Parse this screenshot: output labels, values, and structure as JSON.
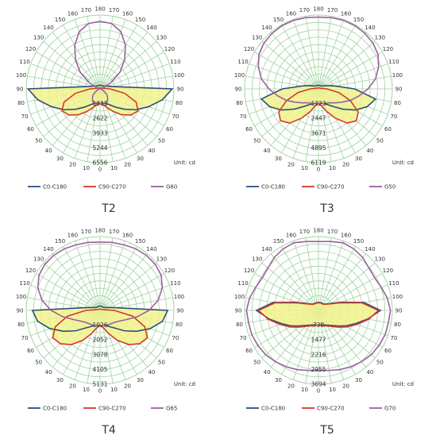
{
  "chart_data": [
    {
      "type": "polar",
      "title": "T2",
      "unit_label": "Unit: cd",
      "angle_tick_labels": [
        "180",
        "170",
        "160",
        "150",
        "140",
        "130",
        "120",
        "110",
        "100",
        "90",
        "80",
        "70",
        "60",
        "50",
        "40",
        "30",
        "20",
        "10",
        "0"
      ],
      "radial_tick_labels": [
        "1311",
        "2622",
        "3933",
        "5244",
        "6556"
      ],
      "rmax": 6556,
      "angles_deg": [
        0,
        10,
        20,
        30,
        40,
        50,
        60,
        70,
        80,
        90,
        100,
        110,
        120,
        130,
        140,
        150,
        160,
        170,
        180
      ],
      "series": [
        {
          "name": "C0-C180",
          "color": "#2b4f7a",
          "values": [
            1300,
            1250,
            1350,
            1600,
            2100,
            2800,
            3700,
            4600,
            5600,
            6400,
            1200,
            700,
            500,
            400,
            350,
            330,
            320,
            320,
            320
          ]
        },
        {
          "name": "C90-C270",
          "color": "#d23a2a",
          "values": [
            1300,
            1400,
            1750,
            2300,
            3000,
            3600,
            3900,
            3400,
            2200,
            900,
            300,
            200,
            150,
            120,
            100,
            100,
            100,
            100,
            100
          ]
        },
        {
          "name": "G60",
          "color": "#9b5f9f",
          "values": [
            0,
            0,
            0,
            0,
            0,
            0,
            0,
            0,
            0,
            0,
            0,
            0,
            0,
            0,
            0,
            0,
            0,
            0,
            0
          ],
          "half_angles_deg": [
            0,
            10,
            20,
            30,
            40,
            50,
            60,
            70,
            80,
            90,
            100,
            110,
            120,
            130,
            140,
            150,
            160,
            170,
            180
          ],
          "half_values": [
            1300,
            1300,
            1400,
            1300,
            1050,
            800,
            400,
            200,
            100,
            60,
            40,
            300,
            1100,
            2300,
            3400,
            4500,
            5400,
            5900,
            6000
          ]
        }
      ]
    },
    {
      "type": "polar",
      "title": "T3",
      "unit_label": "Unit: cd",
      "angle_tick_labels": [
        "180",
        "170",
        "160",
        "150",
        "140",
        "130",
        "120",
        "110",
        "100",
        "90",
        "80",
        "70",
        "60",
        "50",
        "40",
        "30",
        "20",
        "10",
        "0"
      ],
      "radial_tick_labels": [
        "1223",
        "2447",
        "3671",
        "4895",
        "6119"
      ],
      "rmax": 6119,
      "angles_deg": [
        0,
        10,
        20,
        30,
        40,
        50,
        60,
        70,
        80,
        90,
        100,
        110,
        120,
        130,
        140,
        150,
        160,
        170,
        180
      ],
      "series": [
        {
          "name": "C0-C180",
          "color": "#2b4f7a",
          "values": [
            1200,
            1200,
            1300,
            1500,
            1900,
            2600,
            3500,
            4300,
            4800,
            3000,
            1400,
            800,
            500,
            380,
            320,
            300,
            300,
            300,
            300
          ]
        },
        {
          "name": "C90-C270",
          "color": "#d23a2a",
          "values": [
            1200,
            1400,
            2000,
            2800,
            3700,
            4100,
            3800,
            2800,
            1700,
            700,
            250,
            150,
            120,
            100,
            100,
            100,
            100,
            100,
            100
          ]
        },
        {
          "name": "G50",
          "color": "#9b5f9f",
          "half_values": [
            1200,
            1200,
            1300,
            1350,
            1500,
            1800,
            2200,
            2800,
            3400,
            4100,
            4800,
            5300,
            5700,
            5900,
            6000,
            6050,
            6050,
            6000,
            5950
          ]
        }
      ]
    },
    {
      "type": "polar",
      "title": "T4",
      "unit_label": "Unit: cd",
      "angle_tick_labels": [
        "180",
        "170",
        "160",
        "150",
        "140",
        "130",
        "120",
        "110",
        "100",
        "90",
        "80",
        "70",
        "60",
        "50",
        "40",
        "30",
        "20",
        "10",
        "0"
      ],
      "radial_tick_labels": [
        "1026",
        "2052",
        "3078",
        "4105",
        "5131"
      ],
      "rmax": 5131,
      "angles_deg": [
        0,
        10,
        20,
        30,
        40,
        50,
        60,
        70,
        80,
        90,
        100,
        110,
        120,
        130,
        140,
        150,
        160,
        170,
        180
      ],
      "series": [
        {
          "name": "C0-C180",
          "color": "#2b4f7a",
          "values": [
            1050,
            1050,
            1100,
            1300,
            1600,
            2200,
            2900,
            3700,
            4400,
            4700,
            1100,
            600,
            400,
            320,
            300,
            300,
            300,
            300,
            300
          ]
        },
        {
          "name": "C90-C270",
          "color": "#d23a2a",
          "values": [
            1050,
            1200,
            1700,
            2400,
            3100,
            3600,
            3800,
            3300,
            2300,
            1000,
            300,
            180,
            140,
            120,
            100,
            100,
            100,
            100,
            100
          ]
        },
        {
          "name": "G65",
          "color": "#9b5f9f",
          "half_values": [
            1050,
            1050,
            1100,
            1150,
            1200,
            1300,
            1500,
            1900,
            2600,
            3400,
            4100,
            4600,
            4900,
            5000,
            5000,
            4950,
            4850,
            4800,
            4750
          ]
        }
      ]
    },
    {
      "type": "polar",
      "title": "T5",
      "unit_label": "Unit: cd",
      "angle_tick_labels": [
        "180",
        "170",
        "160",
        "150",
        "140",
        "130",
        "120",
        "110",
        "100",
        "90",
        "80",
        "70",
        "60",
        "50",
        "40",
        "30",
        "20",
        "10",
        "0"
      ],
      "radial_tick_labels": [
        "738",
        "1477",
        "2216",
        "2955",
        "3694"
      ],
      "rmax": 3694,
      "angles_deg": [
        0,
        10,
        20,
        30,
        40,
        50,
        60,
        70,
        80,
        90,
        100,
        110,
        120,
        130,
        140,
        150,
        160,
        170,
        180
      ],
      "series": [
        {
          "name": "C0-C180",
          "color": "#2b4f7a",
          "values": [
            740,
            740,
            780,
            850,
            980,
            1200,
            1550,
            1950,
            2500,
            3100,
            2300,
            1200,
            700,
            500,
            420,
            400,
            400,
            400,
            400
          ]
        },
        {
          "name": "C90-C270",
          "color": "#d23a2a",
          "values": [
            740,
            760,
            820,
            900,
            1050,
            1300,
            1650,
            2050,
            2550,
            3000,
            2200,
            1100,
            650,
            480,
            400,
            380,
            380,
            380,
            380
          ]
        },
        {
          "name": "G70",
          "color": "#9b5f9f",
          "half_values": [
            3000,
            3050,
            3150,
            3250,
            3350,
            3450,
            3500,
            3550,
            3550,
            3600,
            3500,
            3350,
            3250,
            3300,
            3450,
            3550,
            3600,
            3500,
            3450
          ]
        }
      ]
    }
  ]
}
